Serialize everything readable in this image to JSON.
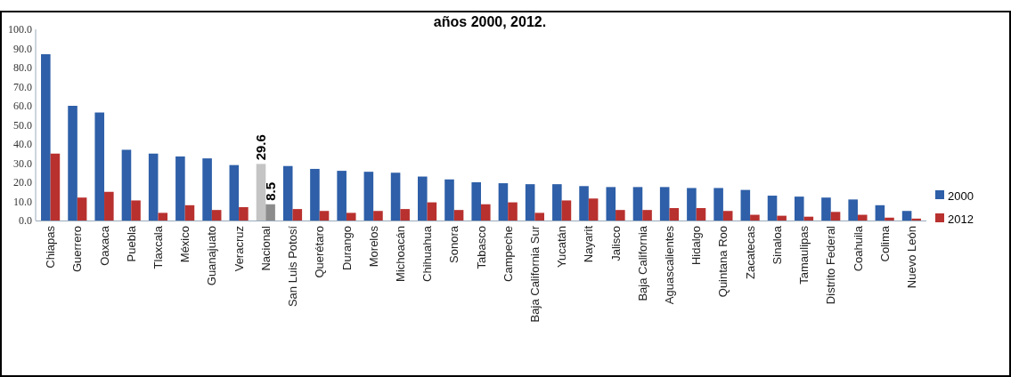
{
  "chart_data": {
    "type": "bar",
    "title": "años 2000, 2012.",
    "categories": [
      "Chiapas",
      "Guerrero",
      "Oaxaca",
      "Puebla",
      "Tlaxcala",
      "México",
      "Guanajuato",
      "Veracruz",
      "Nacional",
      "San Luis Potosí",
      "Querétaro",
      "Durango",
      "Morelos",
      "Michoacán",
      "Chihuahua",
      "Sonora",
      "Tabasco",
      "Campeche",
      "Baja California Sur",
      "Yucatán",
      "Nayarit",
      "Jalisco",
      "Baja California",
      "Aguascalientes",
      "Hidalgo",
      "Quintana Roo",
      "Zacatecas",
      "Sinaloa",
      "Tamaulipas",
      "Distrito Federal",
      "Coahuila",
      "Colima",
      "Nuevo León"
    ],
    "series": [
      {
        "name": "2000",
        "color": "#2e5fa8",
        "colors": [
          "#2e5fa8",
          "#2e5fa8",
          "#2e5fa8",
          "#2e5fa8",
          "#2e5fa8",
          "#2e5fa8",
          "#2e5fa8",
          "#2e5fa8",
          "#c4c4c4",
          "#2e5fa8",
          "#2e5fa8",
          "#2e5fa8",
          "#2e5fa8",
          "#2e5fa8",
          "#2e5fa8",
          "#2e5fa8",
          "#2e5fa8",
          "#2e5fa8",
          "#2e5fa8",
          "#2e5fa8",
          "#2e5fa8",
          "#2e5fa8",
          "#2e5fa8",
          "#2e5fa8",
          "#2e5fa8",
          "#2e5fa8",
          "#2e5fa8",
          "#2e5fa8",
          "#2e5fa8",
          "#2e5fa8",
          "#2e5fa8",
          "#2e5fa8",
          "#2e5fa8"
        ],
        "values": [
          87,
          60,
          56.5,
          37,
          35,
          33.5,
          32.5,
          29,
          29.6,
          28.5,
          27,
          26,
          25.5,
          25,
          23,
          21.5,
          20,
          19.5,
          19,
          19,
          18,
          17.5,
          17.5,
          17.5,
          17,
          17,
          16,
          13,
          12.5,
          12,
          11,
          8,
          5
        ],
        "value_labels": [
          null,
          null,
          null,
          null,
          null,
          null,
          null,
          null,
          "29.6",
          null,
          null,
          null,
          null,
          null,
          null,
          null,
          null,
          null,
          null,
          null,
          null,
          null,
          null,
          null,
          null,
          null,
          null,
          null,
          null,
          null,
          null,
          null,
          null
        ]
      },
      {
        "name": "2012",
        "color": "#b8312f",
        "colors": [
          "#b8312f",
          "#b8312f",
          "#b8312f",
          "#b8312f",
          "#b8312f",
          "#b8312f",
          "#b8312f",
          "#b8312f",
          "#8c8c8c",
          "#b8312f",
          "#b8312f",
          "#b8312f",
          "#b8312f",
          "#b8312f",
          "#b8312f",
          "#b8312f",
          "#b8312f",
          "#b8312f",
          "#b8312f",
          "#b8312f",
          "#b8312f",
          "#b8312f",
          "#b8312f",
          "#b8312f",
          "#b8312f",
          "#b8312f",
          "#b8312f",
          "#b8312f",
          "#b8312f",
          "#b8312f",
          "#b8312f",
          "#b8312f",
          "#b8312f"
        ],
        "values": [
          35,
          12,
          15,
          10.5,
          4,
          8,
          5.5,
          7,
          8.5,
          6,
          5,
          4,
          5,
          6,
          9.5,
          5.5,
          8.5,
          9.5,
          4,
          10.5,
          11.5,
          5.5,
          5.5,
          6.5,
          6.5,
          5,
          3,
          2.5,
          2,
          4.5,
          3,
          1.5,
          1
        ],
        "value_labels": [
          null,
          null,
          null,
          null,
          null,
          null,
          null,
          null,
          "8.5",
          null,
          null,
          null,
          null,
          null,
          null,
          null,
          null,
          null,
          null,
          null,
          null,
          null,
          null,
          null,
          null,
          null,
          null,
          null,
          null,
          null,
          null,
          null,
          null
        ]
      }
    ],
    "ylim": [
      0,
      100
    ],
    "yticks": [
      {
        "value": 0,
        "label": "0.0"
      },
      {
        "value": 10,
        "label": "10.0"
      },
      {
        "value": 20,
        "label": "20.0"
      },
      {
        "value": 30,
        "label": "30.0"
      },
      {
        "value": 40,
        "label": "40.0"
      },
      {
        "value": 50,
        "label": "50.0"
      },
      {
        "value": 60,
        "label": "60.0"
      },
      {
        "value": 70,
        "label": "70.0"
      },
      {
        "value": 80,
        "label": "80.0"
      },
      {
        "value": 90,
        "label": "90.0"
      },
      {
        "value": 100,
        "label": "100.0"
      }
    ],
    "grid": false,
    "legend": "right"
  }
}
